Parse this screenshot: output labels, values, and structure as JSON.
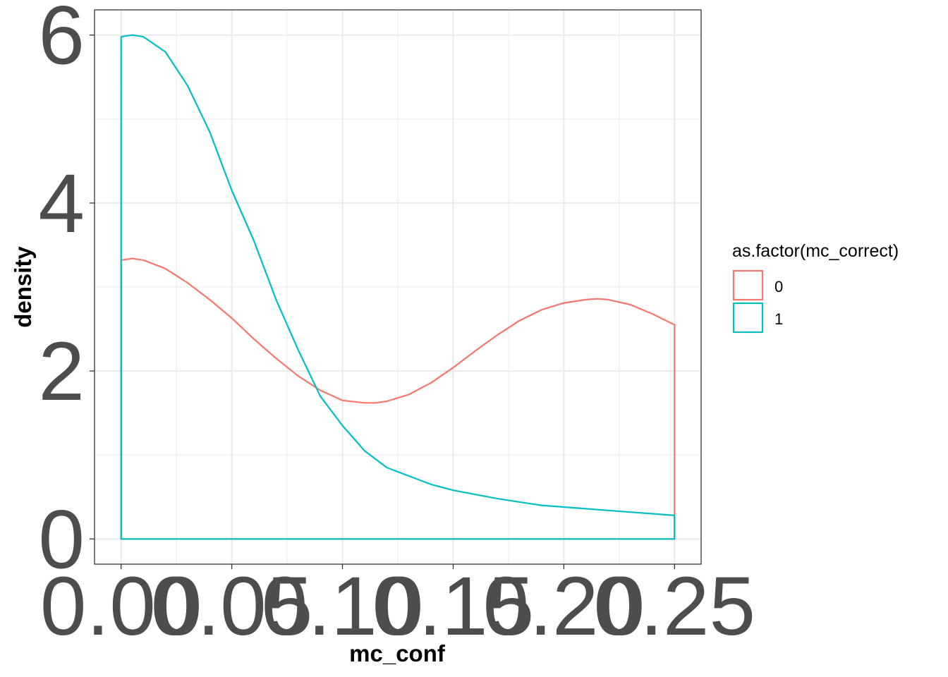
{
  "chart_data": {
    "type": "line",
    "title": "",
    "xlabel": "mc_conf",
    "ylabel": "density",
    "xlim": [
      -0.012,
      0.262
    ],
    "ylim": [
      -0.3,
      6.3
    ],
    "x_ticks": [
      0.0,
      0.05,
      0.1,
      0.15,
      0.2,
      0.25
    ],
    "x_tick_labels": [
      "0.00",
      "0.05",
      "0.10",
      "0.15",
      "0.20",
      "0.25"
    ],
    "y_ticks": [
      0,
      2,
      4,
      6
    ],
    "y_tick_labels": [
      "0",
      "2",
      "4",
      "6"
    ],
    "grid": true,
    "legend": {
      "title": "as.factor(mc_correct)",
      "placement": "right"
    },
    "series": [
      {
        "name": "0",
        "color": "#F8766D",
        "x": [
          0.0,
          0.005,
          0.01,
          0.02,
          0.03,
          0.04,
          0.05,
          0.06,
          0.07,
          0.08,
          0.09,
          0.1,
          0.11,
          0.115,
          0.12,
          0.13,
          0.14,
          0.15,
          0.16,
          0.17,
          0.18,
          0.19,
          0.2,
          0.21,
          0.215,
          0.22,
          0.23,
          0.24,
          0.25
        ],
        "y": [
          3.32,
          3.34,
          3.32,
          3.22,
          3.05,
          2.85,
          2.63,
          2.38,
          2.15,
          1.94,
          1.77,
          1.65,
          1.62,
          1.62,
          1.64,
          1.72,
          1.86,
          2.04,
          2.24,
          2.43,
          2.6,
          2.73,
          2.81,
          2.85,
          2.86,
          2.85,
          2.79,
          2.68,
          2.55
        ]
      },
      {
        "name": "1",
        "color": "#00BFC4",
        "x": [
          0.0,
          0.005,
          0.01,
          0.02,
          0.03,
          0.04,
          0.05,
          0.06,
          0.07,
          0.08,
          0.09,
          0.1,
          0.11,
          0.12,
          0.13,
          0.14,
          0.15,
          0.16,
          0.17,
          0.18,
          0.19,
          0.2,
          0.21,
          0.22,
          0.23,
          0.24,
          0.25
        ],
        "y": [
          5.98,
          6.0,
          5.98,
          5.8,
          5.4,
          4.85,
          4.15,
          3.55,
          2.85,
          2.25,
          1.7,
          1.35,
          1.05,
          0.85,
          0.75,
          0.65,
          0.58,
          0.53,
          0.48,
          0.44,
          0.4,
          0.38,
          0.36,
          0.34,
          0.32,
          0.3,
          0.28
        ]
      }
    ]
  }
}
